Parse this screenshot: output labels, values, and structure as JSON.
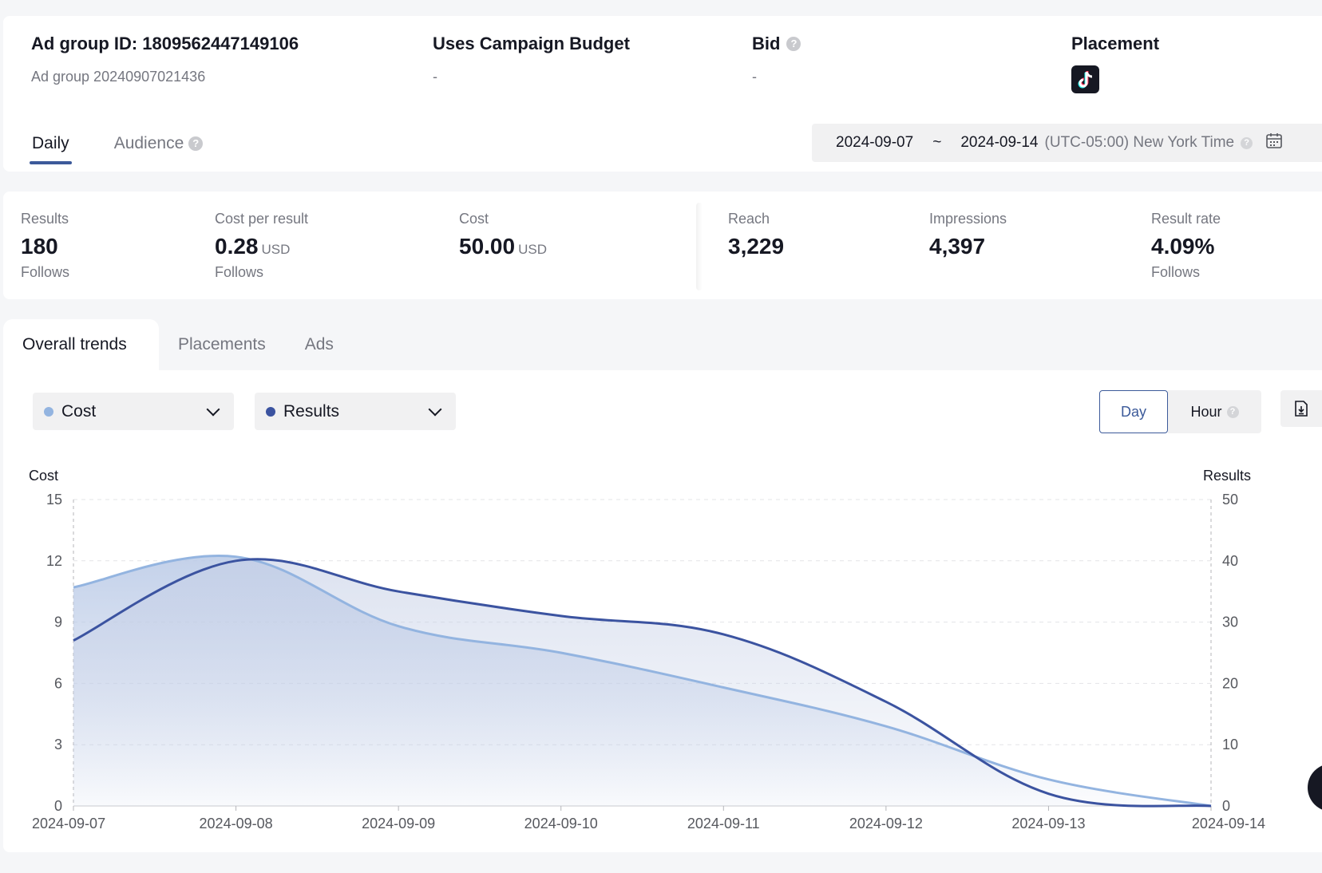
{
  "adgroup": {
    "id_label": "Ad group ID: 1809562447149106",
    "name": "Ad group 20240907021436",
    "budget_title": "Uses Campaign Budget",
    "budget_value": "-",
    "bid_title": "Bid",
    "bid_value": "-",
    "placement_title": "Placement",
    "placement_icon": "tiktok-icon"
  },
  "report_tabs": [
    "Daily",
    "Audience"
  ],
  "date_range": {
    "start": "2024-09-07",
    "separator": "~",
    "end": "2024-09-14",
    "timezone": "(UTC-05:00) New York Time"
  },
  "metrics": [
    {
      "label": "Results",
      "value": "180",
      "unit": "",
      "sub": "Follows"
    },
    {
      "label": "Cost per result",
      "value": "0.28",
      "unit": "USD",
      "sub": "Follows"
    },
    {
      "label": "Cost",
      "value": "50.00",
      "unit": "USD",
      "sub": ""
    },
    {
      "label": "Reach",
      "value": "3,229",
      "unit": "",
      "sub": ""
    },
    {
      "label": "Impressions",
      "value": "4,397",
      "unit": "",
      "sub": ""
    },
    {
      "label": "Result rate",
      "value": "4.09%",
      "unit": "",
      "sub": "Follows"
    }
  ],
  "trend_tabs": [
    "Overall trends",
    "Placements",
    "Ads"
  ],
  "metric_selectors": [
    {
      "label": "Cost",
      "color": "#93b4e0"
    },
    {
      "label": "Results",
      "color": "#3b53a0"
    }
  ],
  "granularity": {
    "day": "Day",
    "hour": "Hour"
  },
  "chart_data": {
    "type": "line",
    "x": [
      "2024-09-07",
      "2024-09-08",
      "2024-09-09",
      "2024-09-10",
      "2024-09-11",
      "2024-09-12",
      "2024-09-13",
      "2024-09-14"
    ],
    "series": [
      {
        "name": "Cost",
        "axis": "left",
        "color": "#93b4e0",
        "values": [
          10.7,
          12.2,
          8.8,
          7.5,
          5.8,
          3.9,
          1.3,
          0
        ]
      },
      {
        "name": "Results",
        "axis": "right",
        "color": "#3b53a0",
        "values": [
          27,
          40,
          35,
          31,
          28,
          17,
          2,
          0
        ]
      }
    ],
    "ylabel_left": "Cost",
    "ylabel_right": "Results",
    "yticks_left": [
      0,
      3,
      6,
      9,
      12,
      15
    ],
    "yticks_right": [
      0,
      10,
      20,
      30,
      40,
      50
    ],
    "ylim_left": [
      0,
      15
    ],
    "ylim_right": [
      0,
      50
    ],
    "grid": true,
    "legend": "top-left"
  }
}
